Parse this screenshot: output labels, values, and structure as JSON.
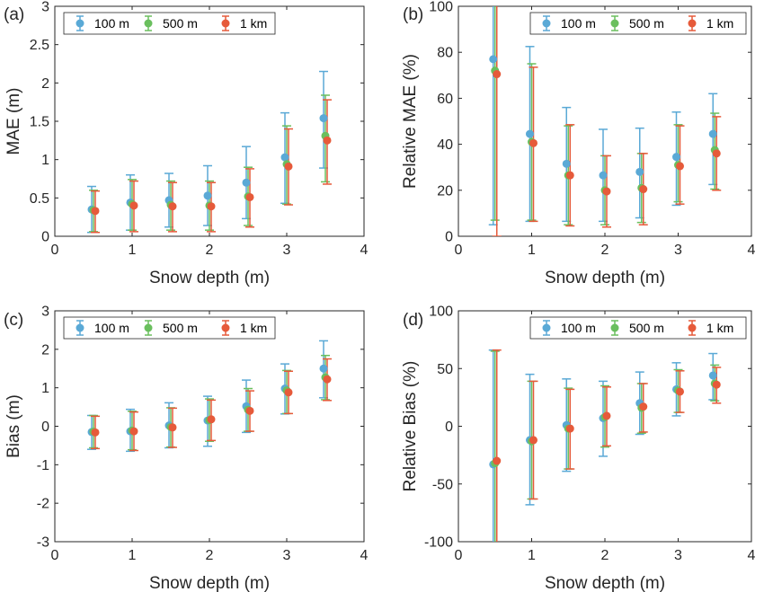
{
  "colors": {
    "s100m": "#5aa9d6",
    "s500m": "#6abf5e",
    "s1km": "#e65a3a"
  },
  "chart_data": [
    {
      "type": "scatter",
      "panel_label": "(a)",
      "xlabel": "Snow depth (m)",
      "ylabel": "MAE (m)",
      "xlim": [
        0,
        4
      ],
      "ylim": [
        0,
        3
      ],
      "xticks": [
        0,
        1,
        2,
        3,
        4
      ],
      "xtick_labels": [
        "0",
        "1",
        "2",
        "3",
        "4"
      ],
      "yticks": [
        0,
        0.5,
        1,
        1.5,
        2,
        2.5,
        3
      ],
      "ytick_labels": [
        "0",
        "0.5",
        "1",
        "1.5",
        "2",
        "2.5",
        "3"
      ],
      "legend": "top-left",
      "x": [
        0.5,
        1.0,
        1.5,
        2.0,
        2.5,
        3.0,
        3.5
      ],
      "series": [
        {
          "name": "100 m",
          "color": "#5aa9d6",
          "values": [
            0.35,
            0.44,
            0.47,
            0.53,
            0.7,
            1.03,
            1.54
          ],
          "err_low": [
            0.3,
            0.36,
            0.35,
            0.39,
            0.47,
            0.6,
            0.65
          ],
          "err_high": [
            0.3,
            0.36,
            0.35,
            0.39,
            0.47,
            0.58,
            0.61
          ]
        },
        {
          "name": "500 m",
          "color": "#6abf5e",
          "values": [
            0.34,
            0.42,
            0.41,
            0.4,
            0.52,
            0.94,
            1.31
          ],
          "err_low": [
            0.28,
            0.34,
            0.33,
            0.32,
            0.38,
            0.52,
            0.6
          ],
          "err_high": [
            0.26,
            0.32,
            0.31,
            0.32,
            0.38,
            0.5,
            0.53
          ]
        },
        {
          "name": "1 km",
          "color": "#e65a3a",
          "values": [
            0.33,
            0.4,
            0.39,
            0.39,
            0.51,
            0.91,
            1.25
          ],
          "err_low": [
            0.28,
            0.34,
            0.33,
            0.33,
            0.39,
            0.5,
            0.57
          ],
          "err_high": [
            0.26,
            0.32,
            0.31,
            0.31,
            0.37,
            0.49,
            0.53
          ]
        }
      ]
    },
    {
      "type": "scatter",
      "panel_label": "(b)",
      "xlabel": "Snow depth (m)",
      "ylabel": "Relative MAE (%)",
      "xlim": [
        0,
        4
      ],
      "ylim": [
        0,
        100
      ],
      "xticks": [
        0,
        1,
        2,
        3,
        4
      ],
      "xtick_labels": [
        "0",
        "1",
        "2",
        "3",
        "4"
      ],
      "yticks": [
        0,
        20,
        40,
        60,
        80,
        100
      ],
      "ytick_labels": [
        "0",
        "20",
        "40",
        "60",
        "80",
        "100"
      ],
      "legend": "top-right",
      "x": [
        0.5,
        1.0,
        1.5,
        2.0,
        2.5,
        3.0,
        3.5
      ],
      "series": [
        {
          "name": "100 m",
          "color": "#5aa9d6",
          "values": [
            77,
            44.5,
            31.5,
            26.5,
            28,
            34.5,
            44.5
          ],
          "err_low": [
            72,
            38,
            25,
            20,
            20,
            21,
            22
          ],
          "err_high": [
            72,
            38,
            24.5,
            20,
            19,
            19.5,
            17.5
          ]
        },
        {
          "name": "500 m",
          "color": "#6abf5e",
          "values": [
            72,
            41,
            26.5,
            20,
            21,
            31,
            37.5
          ],
          "err_low": [
            65,
            34,
            21.5,
            15,
            15,
            16,
            17
          ],
          "err_high": [
            65,
            34,
            21.5,
            15,
            15,
            17.5,
            16
          ]
        },
        {
          "name": "1 km",
          "color": "#e65a3a",
          "values": [
            70.5,
            40.5,
            26.5,
            19.5,
            20.5,
            30.5,
            36
          ],
          "err_low": [
            70.5,
            34,
            22,
            15.5,
            15.5,
            16.5,
            16
          ],
          "err_high": [
            35,
            33,
            22,
            15.5,
            15.5,
            17.5,
            16
          ]
        }
      ]
    },
    {
      "type": "scatter",
      "panel_label": "(c)",
      "xlabel": "Snow depth (m)",
      "ylabel": "Bias (m)",
      "xlim": [
        0,
        4
      ],
      "ylim": [
        -3,
        3
      ],
      "xticks": [
        0,
        1,
        2,
        3,
        4
      ],
      "xtick_labels": [
        "0",
        "1",
        "2",
        "3",
        "4"
      ],
      "yticks": [
        -3,
        -2,
        -1,
        0,
        1,
        2,
        3
      ],
      "ytick_labels": [
        "-3",
        "-2",
        "-1",
        "0",
        "1",
        "2",
        "3"
      ],
      "legend": "top-left",
      "x": [
        0.5,
        1.0,
        1.5,
        2.0,
        2.5,
        3.0,
        3.5
      ],
      "series": [
        {
          "name": "100 m",
          "color": "#5aa9d6",
          "values": [
            -0.15,
            -0.13,
            0.02,
            0.15,
            0.52,
            0.98,
            1.5
          ],
          "err_low": [
            0.45,
            0.52,
            0.58,
            0.67,
            0.68,
            0.66,
            0.76
          ],
          "err_high": [
            0.43,
            0.57,
            0.59,
            0.63,
            0.68,
            0.64,
            0.72
          ]
        },
        {
          "name": "500 m",
          "color": "#6abf5e",
          "values": [
            -0.14,
            -0.11,
            -0.02,
            0.16,
            0.43,
            0.93,
            1.27
          ],
          "err_low": [
            0.42,
            0.5,
            0.52,
            0.55,
            0.56,
            0.6,
            0.58
          ],
          "err_high": [
            0.42,
            0.5,
            0.5,
            0.55,
            0.55,
            0.52,
            0.57
          ]
        },
        {
          "name": "1 km",
          "color": "#e65a3a",
          "values": [
            -0.16,
            -0.13,
            -0.03,
            0.18,
            0.4,
            0.88,
            1.22
          ],
          "err_low": [
            0.42,
            0.5,
            0.52,
            0.55,
            0.53,
            0.55,
            0.55
          ],
          "err_high": [
            0.42,
            0.5,
            0.5,
            0.5,
            0.52,
            0.55,
            0.53
          ]
        }
      ]
    },
    {
      "type": "scatter",
      "panel_label": "(d)",
      "xlabel": "Snow depth (m)",
      "ylabel": "Relative Bias (%)",
      "xlim": [
        0,
        4
      ],
      "ylim": [
        -100,
        100
      ],
      "xticks": [
        0,
        1,
        2,
        3,
        4
      ],
      "xtick_labels": [
        "0",
        "1",
        "2",
        "3",
        "4"
      ],
      "yticks": [
        -100,
        -50,
        0,
        50,
        100
      ],
      "ytick_labels": [
        "-100",
        "-50",
        "0",
        "50",
        "100"
      ],
      "legend": "top-right",
      "x": [
        0.5,
        1.0,
        1.5,
        2.0,
        2.5,
        3.0,
        3.5
      ],
      "series": [
        {
          "name": "100 m",
          "color": "#5aa9d6",
          "values": [
            -33,
            -12,
            1,
            7,
            20,
            32,
            44
          ],
          "err_low": [
            100,
            56,
            40,
            33,
            27,
            23,
            21
          ],
          "err_high": [
            99,
            57,
            40,
            32,
            27,
            23,
            19
          ]
        },
        {
          "name": "500 m",
          "color": "#6abf5e",
          "values": [
            -32,
            -13,
            -2,
            8,
            16,
            31,
            37
          ],
          "err_low": [
            100,
            50,
            35,
            26,
            22,
            19,
            15
          ],
          "err_high": [
            97,
            52,
            35,
            27,
            21,
            18,
            16
          ]
        },
        {
          "name": "1 km",
          "color": "#e65a3a",
          "values": [
            -30,
            -12,
            -2,
            9,
            17,
            30,
            36
          ],
          "err_low": [
            100,
            51,
            35,
            26,
            22,
            18,
            16
          ],
          "err_high": [
            96,
            51,
            34,
            25,
            20,
            18,
            15
          ]
        }
      ]
    }
  ]
}
